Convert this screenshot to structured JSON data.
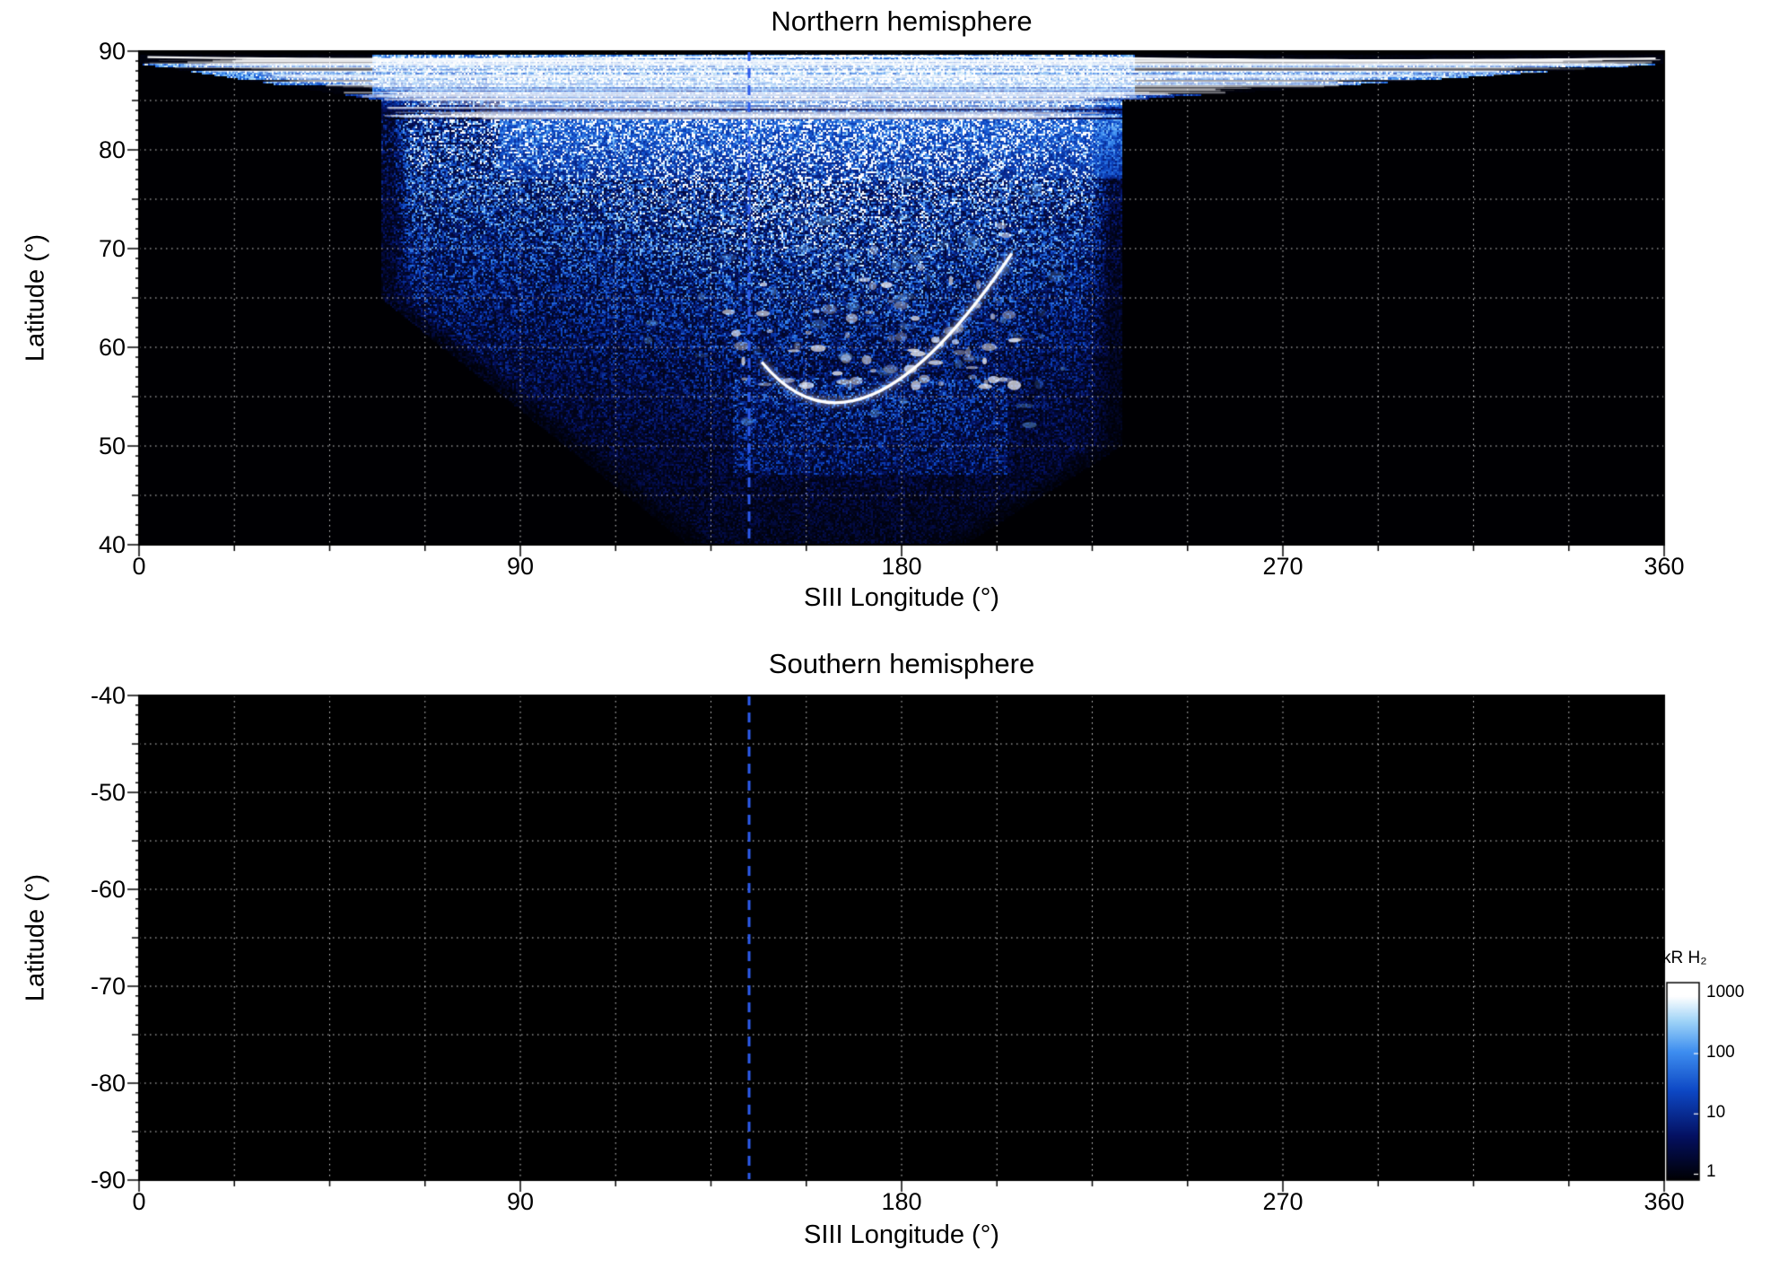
{
  "figure": {
    "panels": [
      {
        "title": "Northern hemisphere",
        "xlabel": "SIII Longitude (°)",
        "ylabel": "Latitude (°)",
        "xtick_labels": [
          "0",
          "90",
          "180",
          "270",
          "360"
        ],
        "ytick_labels": [
          "90",
          "80",
          "70",
          "60",
          "50",
          "40"
        ]
      },
      {
        "title": "Southern hemisphere",
        "xlabel": "SIII Longitude (°)",
        "ylabel": "Latitude (°)",
        "xtick_labels": [
          "0",
          "90",
          "180",
          "270",
          "360"
        ],
        "ytick_labels": [
          "-40",
          "-50",
          "-60",
          "-70",
          "-80",
          "-90"
        ]
      }
    ],
    "colorbar": {
      "label": "kR H₂",
      "tick_labels": [
        "1000",
        "100",
        "10",
        "1"
      ]
    }
  },
  "chart_data": {
    "type": "heatmap",
    "panels": [
      {
        "title": "Northern hemisphere",
        "xlabel": "SIII Longitude (°)",
        "ylabel": "Latitude (°)",
        "xlim": [
          0,
          360
        ],
        "ylim": [
          40,
          90
        ],
        "xticks": [
          0,
          90,
          180,
          270,
          360
        ],
        "yticks": [
          90,
          80,
          70,
          60,
          50,
          40
        ],
        "grid_x_step": 22.5,
        "grid_y_step": 5,
        "reference_longitude_line": 144,
        "description": "H2 auroral emission map: diffuse speckled blue emission between longitudes ~55-232 deg reaching down to latitude ~40 deg near longitudes 130-200; bright white polar emission above ~77 deg latitude between longitudes ~85-238; bright curved auroral arc from (147,58.5) through (173,55) to (206,69.5); thin bright band near latitude 89.4 across all longitudes; elsewhere black (no emission)"
      },
      {
        "title": "Southern hemisphere",
        "xlabel": "SIII Longitude (°)",
        "ylabel": "Latitude (°)",
        "xlim": [
          0,
          360
        ],
        "ylim": [
          -90,
          -40
        ],
        "xticks": [
          0,
          90,
          180,
          270,
          360
        ],
        "yticks": [
          -40,
          -50,
          -60,
          -70,
          -80,
          -90
        ],
        "grid_x_step": 22.5,
        "grid_y_step": 5,
        "reference_longitude_line": 144,
        "description": "no emission data: entire panel black"
      }
    ],
    "colorbar": {
      "label": "kR H₂",
      "scale": "log",
      "range": [
        1,
        1000
      ],
      "ticks": [
        1000,
        100,
        10,
        1
      ],
      "colormap_stops": [
        [
          0,
          "#000003"
        ],
        [
          0.22,
          "#041060"
        ],
        [
          0.45,
          "#0D47C4"
        ],
        [
          0.65,
          "#3E8EF0"
        ],
        [
          0.8,
          "#9CD2F7"
        ],
        [
          0.93,
          "#FFFFFF"
        ],
        [
          1,
          "#FFFFFF"
        ]
      ]
    },
    "aurora_model": {
      "lon_center": 165,
      "left_boundary_lon": 57,
      "right_boundary_lon": 232,
      "bright_core": {
        "lon": [
          85,
          238
        ],
        "lat_min": 77
      },
      "arc_bezier": [
        [
          147,
          58.5
        ],
        [
          170,
          46.5
        ],
        [
          206,
          69.5
        ]
      ],
      "polar_line_lat": 89.4
    },
    "style": {
      "background": "#000000",
      "grid_color": "#ffffff",
      "reference_line_color": "#2d5cee",
      "frame_color": "#000000"
    }
  }
}
